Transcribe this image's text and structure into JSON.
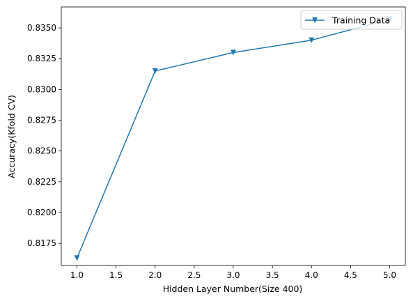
{
  "chart_data": {
    "type": "line",
    "title": "",
    "xlabel": "Hidden Layer Number(Size 400)",
    "ylabel": "Accuracy(Kfold CV)",
    "xlim": [
      0.8,
      5.2
    ],
    "ylim": [
      0.8157,
      0.8367
    ],
    "xticks": [
      1.0,
      1.5,
      2.0,
      2.5,
      3.0,
      3.5,
      4.0,
      4.5,
      5.0
    ],
    "xtick_labels": [
      "1.0",
      "1.5",
      "2.0",
      "2.5",
      "3.0",
      "3.5",
      "4.0",
      "4.5",
      "5.0"
    ],
    "yticks": [
      0.8175,
      0.82,
      0.8225,
      0.825,
      0.8275,
      0.83,
      0.8325,
      0.835
    ],
    "ytick_labels": [
      "0.8175",
      "0.8200",
      "0.8225",
      "0.8250",
      "0.8275",
      "0.8300",
      "0.8325",
      "0.8350"
    ],
    "grid": false,
    "legend_position": "top-right",
    "series": [
      {
        "name": "Training Data",
        "color": "#1f77b4",
        "marker": "triangle-down",
        "x": [
          1,
          2,
          3,
          4,
          5
        ],
        "y": [
          0.8163,
          0.8315,
          0.833,
          0.834,
          0.8357
        ]
      }
    ]
  }
}
